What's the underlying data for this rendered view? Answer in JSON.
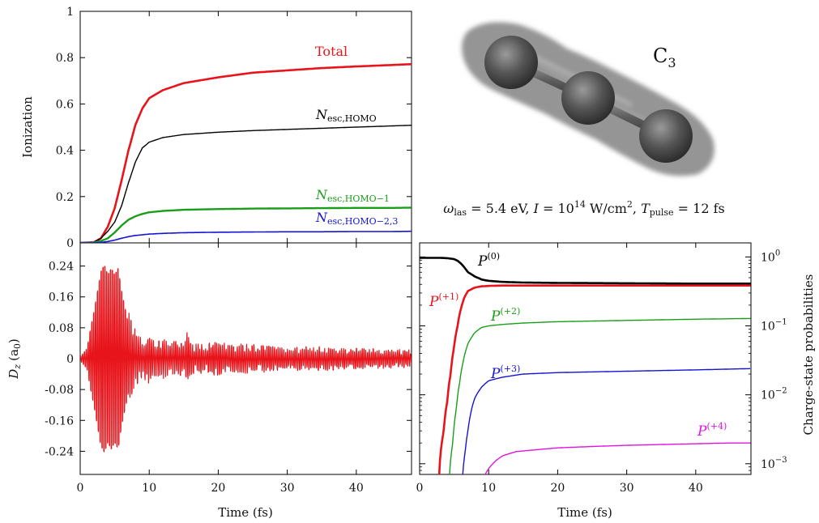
{
  "chart_data": [
    {
      "panel": "ionization",
      "type": "line",
      "ylabel": "Ionization",
      "xlim": [
        0,
        48
      ],
      "ylim": [
        0,
        1
      ],
      "y_ticks": [
        "0",
        "0.2",
        "0.4",
        "0.6",
        "0.8",
        "1"
      ],
      "series": [
        {
          "name": "Total",
          "color": "#e8141b",
          "x": [
            0,
            2,
            3,
            4,
            5,
            6,
            7,
            8,
            9,
            10,
            12,
            15,
            20,
            25,
            30,
            35,
            40,
            45,
            48
          ],
          "y": [
            0,
            0.003,
            0.02,
            0.07,
            0.15,
            0.27,
            0.4,
            0.51,
            0.58,
            0.625,
            0.66,
            0.69,
            0.715,
            0.735,
            0.745,
            0.755,
            0.762,
            0.768,
            0.772
          ]
        },
        {
          "name": "N_esc,HOMO",
          "color": "#000000",
          "x": [
            0,
            2,
            3,
            4,
            5,
            6,
            7,
            8,
            9,
            10,
            12,
            15,
            20,
            25,
            30,
            35,
            40,
            45,
            48
          ],
          "y": [
            0,
            0.003,
            0.02,
            0.05,
            0.09,
            0.16,
            0.26,
            0.35,
            0.41,
            0.435,
            0.455,
            0.468,
            0.478,
            0.485,
            0.49,
            0.495,
            0.5,
            0.505,
            0.508
          ]
        },
        {
          "name": "N_esc,HOMO−1",
          "color": "#1a9e1a",
          "x": [
            0,
            2,
            3,
            4,
            5,
            6,
            7,
            8,
            9,
            10,
            12,
            15,
            20,
            25,
            30,
            35,
            40,
            45,
            48
          ],
          "y": [
            0,
            0.001,
            0.008,
            0.02,
            0.045,
            0.075,
            0.1,
            0.115,
            0.125,
            0.132,
            0.138,
            0.143,
            0.146,
            0.148,
            0.149,
            0.15,
            0.151,
            0.151,
            0.152
          ]
        },
        {
          "name": "N_esc,HOMO−2,3",
          "color": "#1414d4",
          "x": [
            0,
            2,
            3,
            4,
            5,
            6,
            7,
            8,
            9,
            10,
            12,
            15,
            20,
            25,
            30,
            35,
            40,
            45,
            48
          ],
          "y": [
            0,
            0.0,
            0.002,
            0.006,
            0.012,
            0.02,
            0.027,
            0.032,
            0.035,
            0.038,
            0.041,
            0.044,
            0.046,
            0.047,
            0.048,
            0.048,
            0.049,
            0.049,
            0.05
          ]
        }
      ],
      "labels": [
        {
          "text": "Total",
          "sub": "",
          "color": "#e8141b"
        },
        {
          "text": "N",
          "sub": "esc,HOMO",
          "color": "#000000"
        },
        {
          "text": "N",
          "sub": "esc,HOMO−1",
          "color": "#1a9e1a"
        },
        {
          "text": "N",
          "sub": "esc,HOMO−2,3",
          "color": "#1414d4"
        }
      ]
    },
    {
      "panel": "dipole",
      "type": "line",
      "xlabel": "Time (fs)",
      "ylabel_main": "D",
      "ylabel_sub": "z",
      "ylabel_rest": "(a",
      "ylabel_rest_sub": "0",
      "ylabel_close": ")",
      "xlim": [
        0,
        48
      ],
      "ylim": [
        -0.3,
        0.3
      ],
      "x_ticks": [
        "0",
        "10",
        "20",
        "30",
        "40"
      ],
      "y_ticks": [
        "-0.24",
        "-0.16",
        "-0.08",
        "0",
        "0.08",
        "0.16",
        "0.24"
      ],
      "series": [
        {
          "name": "",
          "color": "#e8141b",
          "signal": "oscillation",
          "period_fs": 0.27,
          "envelope_x": [
            0,
            1,
            1.5,
            2,
            2.5,
            3,
            3.5,
            4,
            4.5,
            5,
            5.5,
            6,
            6.5,
            7,
            7.5,
            8,
            9,
            10,
            11,
            12,
            13,
            14,
            15,
            15.5,
            16,
            17,
            20,
            25,
            30,
            35,
            40,
            45,
            48
          ],
          "envelope_y": [
            0.005,
            0.03,
            0.09,
            0.14,
            0.2,
            0.26,
            0.28,
            0.25,
            0.27,
            0.25,
            0.27,
            0.2,
            0.15,
            0.1,
            0.09,
            0.06,
            0.04,
            0.055,
            0.035,
            0.045,
            0.03,
            0.04,
            0.03,
            0.065,
            0.035,
            0.03,
            0.035,
            0.03,
            0.025,
            0.025,
            0.022,
            0.02,
            0.02
          ]
        }
      ]
    },
    {
      "panel": "charge-state",
      "type": "line",
      "xlabel": "Time (fs)",
      "ylabel": "Charge-state probabilities",
      "yscale": "log",
      "xlim": [
        0,
        48
      ],
      "ylim": [
        0.0007,
        1.6
      ],
      "x_ticks": [
        "0",
        "10",
        "20",
        "30",
        "40"
      ],
      "y_ticks": [
        {
          "base": "10",
          "exp": "0",
          "value": 1
        },
        {
          "base": "10",
          "exp": "−1",
          "value": 0.1
        },
        {
          "base": "10",
          "exp": "−2",
          "value": 0.01
        },
        {
          "base": "10",
          "exp": "−3",
          "value": 0.001
        }
      ],
      "series": [
        {
          "name": "P(0)",
          "color": "#000000",
          "x": [
            0,
            3,
            4,
            5,
            5.5,
            6,
            6.5,
            7,
            8,
            9,
            10,
            12,
            15,
            20,
            30,
            40,
            48
          ],
          "y": [
            0.97,
            0.97,
            0.96,
            0.93,
            0.88,
            0.8,
            0.7,
            0.6,
            0.52,
            0.47,
            0.45,
            0.435,
            0.425,
            0.42,
            0.415,
            0.41,
            0.41
          ]
        },
        {
          "name": "P(+1)",
          "color": "#e8141b",
          "x": [
            2.8,
            3.5,
            4,
            4.5,
            5,
            5.5,
            6,
            6.5,
            7,
            8,
            9,
            10,
            12,
            15,
            20,
            30,
            40,
            48
          ],
          "y": [
            0.0006,
            0.003,
            0.008,
            0.02,
            0.05,
            0.1,
            0.18,
            0.26,
            0.32,
            0.36,
            0.375,
            0.38,
            0.385,
            0.385,
            0.385,
            0.385,
            0.385,
            0.385
          ]
        },
        {
          "name": "P(+2)",
          "color": "#1a9e1a",
          "x": [
            4.3,
            4.8,
            5.3,
            5.8,
            6.3,
            7,
            8,
            9,
            10,
            12,
            15,
            20,
            30,
            40,
            48
          ],
          "y": [
            0.0006,
            0.002,
            0.006,
            0.015,
            0.03,
            0.055,
            0.08,
            0.095,
            0.1,
            0.105,
            0.11,
            0.115,
            0.12,
            0.125,
            0.128
          ]
        },
        {
          "name": "P(+3)",
          "color": "#1414d4",
          "x": [
            6.2,
            6.6,
            7,
            7.5,
            8,
            9,
            10,
            12,
            15,
            20,
            30,
            40,
            48
          ],
          "y": [
            0.0006,
            0.0015,
            0.003,
            0.006,
            0.009,
            0.013,
            0.016,
            0.018,
            0.02,
            0.021,
            0.022,
            0.023,
            0.024
          ]
        },
        {
          "name": "P(+4)",
          "color": "#e014e0",
          "x": [
            9.5,
            10,
            11,
            12,
            14,
            17,
            20,
            25,
            30,
            35,
            40,
            45,
            48
          ],
          "y": [
            0.0007,
            0.00085,
            0.0011,
            0.0013,
            0.0015,
            0.0016,
            0.0017,
            0.00178,
            0.00185,
            0.0019,
            0.00195,
            0.002,
            0.002
          ]
        }
      ],
      "labels": [
        {
          "text": "P",
          "sup": "(0)",
          "color": "#000000"
        },
        {
          "text": "P",
          "sup": "(+1)",
          "color": "#e8141b"
        },
        {
          "text": "P",
          "sup": "(+2)",
          "color": "#1a9e1a"
        },
        {
          "text": "P",
          "sup": "(+3)",
          "color": "#1414d4"
        },
        {
          "text": "P",
          "sup": "(+4)",
          "color": "#e014e0"
        }
      ]
    }
  ],
  "molecule": {
    "name": "C",
    "name_sub": "3",
    "caption": {
      "omega": "ω",
      "omega_sub": "las",
      "omega_val": " = 5.4 eV, ",
      "intensity": "I",
      "intensity_val": " = 10",
      "intensity_exp": "14",
      "intensity_unit": " W/cm",
      "intensity_unit_exp": "2",
      "sep": ", ",
      "pulse": "T",
      "pulse_sub": "pulse",
      "pulse_val": " = 12 fs"
    },
    "colors": {
      "cloud": "#8a8a8a",
      "atom": "#5a5a5a"
    }
  }
}
